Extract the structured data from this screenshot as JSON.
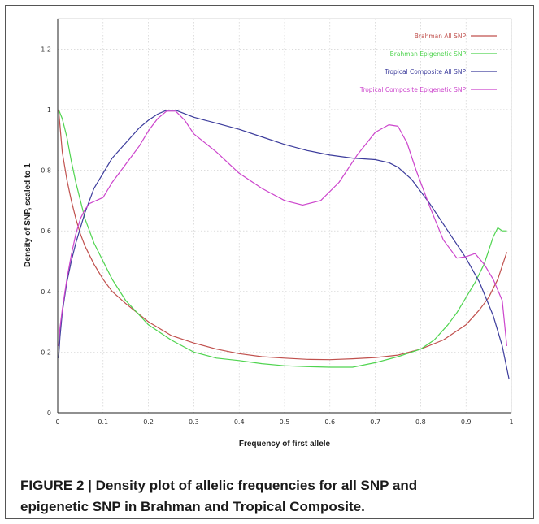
{
  "chart_data": {
    "type": "line",
    "xlabel": "Frequency of first allele",
    "ylabel": "Density of SNP, scaled to 1",
    "xlim": [
      0,
      1
    ],
    "ylim": [
      0,
      1.3
    ],
    "x_ticks": [
      "0",
      "0.1",
      "0.2",
      "0.3",
      "0.4",
      "0.5",
      "0.6",
      "0.7",
      "0.8",
      "0.9",
      "1"
    ],
    "y_ticks": [
      "0",
      "0.2",
      "0.4",
      "0.6",
      "0.8",
      "1",
      "1.2"
    ],
    "grid": true,
    "legend_position": "top-right",
    "series": [
      {
        "name": "Brahman All SNP",
        "color": "#c0504d",
        "x": [
          0.002,
          0.01,
          0.02,
          0.03,
          0.04,
          0.05,
          0.06,
          0.08,
          0.1,
          0.12,
          0.15,
          0.2,
          0.25,
          0.3,
          0.35,
          0.4,
          0.45,
          0.5,
          0.55,
          0.6,
          0.65,
          0.7,
          0.75,
          0.8,
          0.85,
          0.88,
          0.9,
          0.93,
          0.95,
          0.97,
          0.99
        ],
        "y": [
          1.0,
          0.86,
          0.77,
          0.7,
          0.64,
          0.59,
          0.55,
          0.49,
          0.44,
          0.4,
          0.36,
          0.3,
          0.255,
          0.23,
          0.21,
          0.195,
          0.185,
          0.18,
          0.176,
          0.175,
          0.178,
          0.182,
          0.19,
          0.21,
          0.24,
          0.27,
          0.29,
          0.34,
          0.38,
          0.44,
          0.53
        ]
      },
      {
        "name": "Brahman Epigenetic SNP",
        "color": "#4fd44f",
        "x": [
          0.002,
          0.01,
          0.02,
          0.03,
          0.04,
          0.05,
          0.06,
          0.08,
          0.1,
          0.12,
          0.15,
          0.2,
          0.25,
          0.3,
          0.35,
          0.4,
          0.45,
          0.5,
          0.55,
          0.6,
          0.65,
          0.7,
          0.75,
          0.8,
          0.83,
          0.86,
          0.88,
          0.9,
          0.92,
          0.94,
          0.96,
          0.97,
          0.98,
          0.99
        ],
        "y": [
          1.0,
          0.97,
          0.91,
          0.83,
          0.76,
          0.7,
          0.64,
          0.56,
          0.5,
          0.44,
          0.37,
          0.29,
          0.24,
          0.2,
          0.18,
          0.172,
          0.162,
          0.155,
          0.152,
          0.15,
          0.15,
          0.165,
          0.185,
          0.21,
          0.24,
          0.29,
          0.33,
          0.38,
          0.43,
          0.49,
          0.58,
          0.61,
          0.6,
          0.6
        ]
      },
      {
        "name": "Tropical Composite All SNP",
        "color": "#3c3c9c",
        "x": [
          0.002,
          0.005,
          0.01,
          0.02,
          0.03,
          0.04,
          0.05,
          0.06,
          0.08,
          0.1,
          0.12,
          0.15,
          0.18,
          0.2,
          0.22,
          0.24,
          0.26,
          0.3,
          0.35,
          0.4,
          0.45,
          0.5,
          0.55,
          0.6,
          0.65,
          0.7,
          0.73,
          0.75,
          0.78,
          0.82,
          0.86,
          0.9,
          0.93,
          0.96,
          0.98,
          0.995
        ],
        "y": [
          0.18,
          0.25,
          0.33,
          0.43,
          0.5,
          0.56,
          0.61,
          0.66,
          0.74,
          0.79,
          0.84,
          0.89,
          0.94,
          0.965,
          0.985,
          0.998,
          0.998,
          0.975,
          0.955,
          0.935,
          0.91,
          0.885,
          0.865,
          0.85,
          0.84,
          0.835,
          0.825,
          0.81,
          0.77,
          0.69,
          0.6,
          0.51,
          0.43,
          0.32,
          0.22,
          0.11
        ]
      },
      {
        "name": "Tropical Composite Epigenetic SNP",
        "color": "#cc44cc",
        "x": [
          0.002,
          0.005,
          0.01,
          0.02,
          0.03,
          0.04,
          0.05,
          0.06,
          0.07,
          0.1,
          0.12,
          0.15,
          0.18,
          0.2,
          0.22,
          0.24,
          0.26,
          0.28,
          0.3,
          0.35,
          0.4,
          0.45,
          0.5,
          0.54,
          0.58,
          0.62,
          0.66,
          0.7,
          0.73,
          0.75,
          0.77,
          0.79,
          0.82,
          0.85,
          0.88,
          0.9,
          0.92,
          0.94,
          0.96,
          0.98,
          0.99
        ],
        "y": [
          0.22,
          0.28,
          0.34,
          0.44,
          0.52,
          0.59,
          0.64,
          0.67,
          0.69,
          0.71,
          0.76,
          0.82,
          0.88,
          0.93,
          0.97,
          0.995,
          0.995,
          0.965,
          0.92,
          0.86,
          0.79,
          0.74,
          0.7,
          0.685,
          0.7,
          0.76,
          0.85,
          0.925,
          0.95,
          0.945,
          0.89,
          0.8,
          0.68,
          0.57,
          0.51,
          0.515,
          0.525,
          0.49,
          0.44,
          0.37,
          0.22
        ]
      }
    ]
  },
  "caption": {
    "line1": "FIGURE 2 | Density plot of allelic frequencies for all SNP and",
    "line2": "epigenetic SNP in Brahman and Tropical Composite."
  }
}
